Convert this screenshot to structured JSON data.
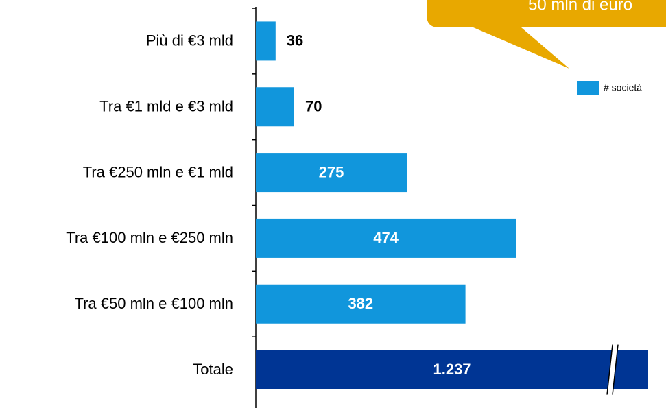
{
  "chart_data": {
    "type": "bar",
    "orientation": "horizontal",
    "annotation": "50 mln di euro",
    "categories": [
      "Più di €3 mld",
      "Tra €1 mld e €3 mld",
      "Tra €250 mln e €1 mld",
      "Tra €100 mln e €250 mln",
      "Tra €50 mln e €100 mln",
      "Totale"
    ],
    "series": [
      {
        "name": "# società",
        "color": "#1196dc",
        "values": [
          36,
          70,
          275,
          474,
          382,
          1237
        ],
        "value_labels": [
          "36",
          "70",
          "275",
          "474",
          "382",
          "1.237"
        ]
      }
    ],
    "highlight": {
      "category": "Totale",
      "color": "#003594"
    },
    "xlim": [
      0,
      715
    ],
    "legend": "top-right",
    "axis_break": true
  }
}
